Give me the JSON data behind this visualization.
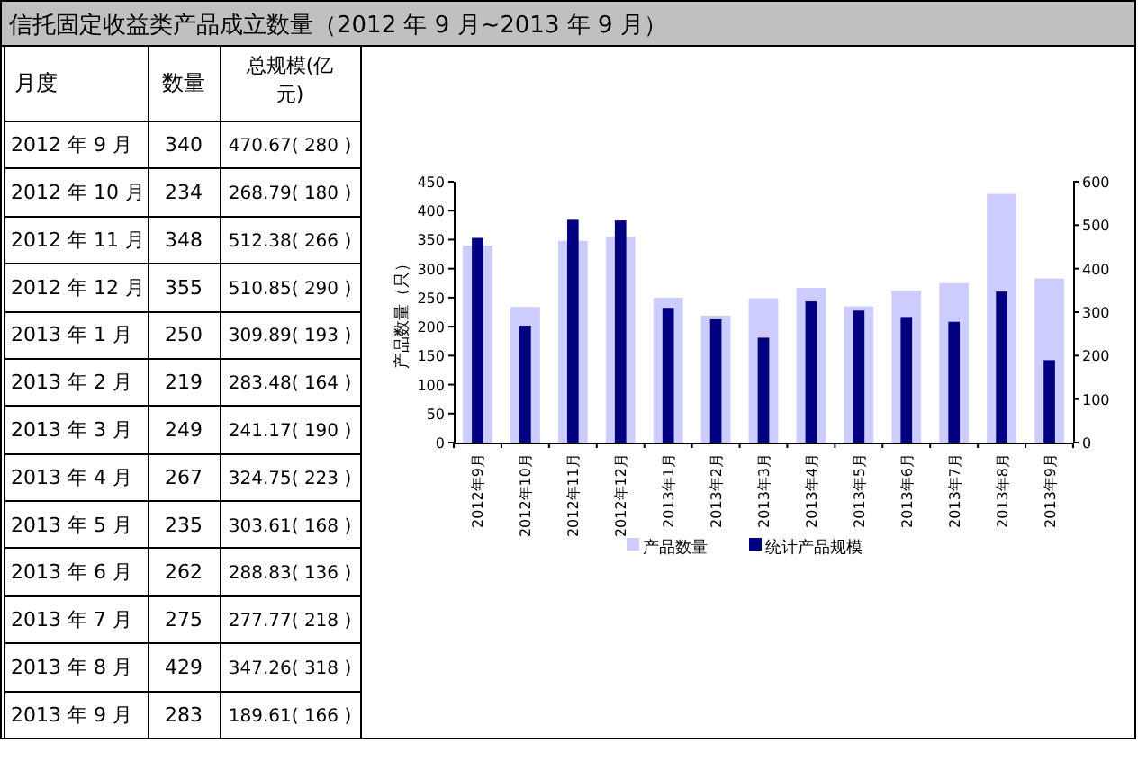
{
  "chart_data": {
    "type": "bar",
    "title": "信托固定收益类产品成立数量（2012 年 9 月~2013 年 9 月）",
    "ylabel": "产品数量（只）",
    "categories": [
      "2012年9月",
      "2012年10月",
      "2012年11月",
      "2012年12月",
      "2013年1月",
      "2013年2月",
      "2013年3月",
      "2013年4月",
      "2013年5月",
      "2013年6月",
      "2013年7月",
      "2013年8月",
      "2013年9月"
    ],
    "series": [
      {
        "name": "产品数量",
        "color": "#ccccff",
        "values": [
          340,
          234,
          348,
          355,
          250,
          219,
          249,
          267,
          235,
          262,
          275,
          429,
          283
        ]
      },
      {
        "name": "统计产品规模",
        "color": "#000080",
        "axis": "y2",
        "values": [
          470.67,
          268.79,
          512.38,
          510.85,
          309.89,
          283.48,
          241.17,
          324.75,
          303.61,
          288.83,
          277.77,
          347.26,
          189.61
        ]
      }
    ],
    "ylim": [
      0,
      450
    ],
    "yticks": [
      0,
      50,
      100,
      150,
      200,
      250,
      300,
      350,
      400,
      450
    ],
    "y2lim": [
      0,
      600
    ],
    "y2ticks": [
      0,
      100,
      200,
      300,
      400,
      500,
      600
    ],
    "legend": "bottom",
    "annotations": [
      "月度",
      "数量",
      "总规模(亿元)",
      "2012 年 9 月",
      "340",
      "470.67( 280 )",
      "2012 年 10 月",
      "234",
      "268.79( 180 )",
      "2012 年 11 月",
      "348",
      "512.38( 266 )",
      "2012 年 12 月",
      "355",
      "510.85( 290 )",
      "2013 年 1 月",
      "250",
      "309.89( 193 )",
      "2013 年 2 月",
      "219",
      "283.48( 164 )",
      "2013 年 3 月",
      "249",
      "241.17( 190 )",
      "2013 年 4 月",
      "267",
      "324.75( 223 )",
      "2013 年 5 月",
      "235",
      "303.61( 168 )",
      "2013 年 6 月",
      "262",
      "288.83( 136 )",
      "2013 年 7 月",
      "275",
      "277.77( 218 )",
      "2013 年 8 月",
      "429",
      "347.26( 318 )",
      "2013 年 9 月",
      "283",
      "189.61( 166 )"
    ]
  }
}
